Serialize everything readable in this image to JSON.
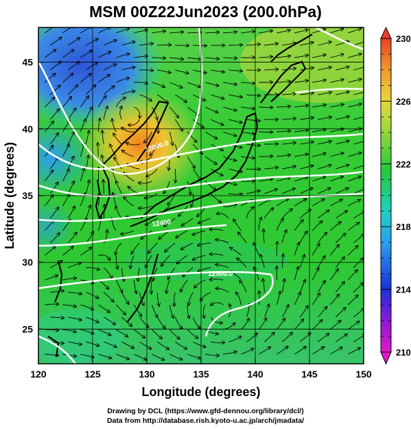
{
  "title": "MSM 00Z22Jun2023 (200.0hPa)",
  "chart_data": {
    "type": "heatmap",
    "xlabel": "Longitude (degrees)",
    "ylabel": "Latitude  (degrees)",
    "xlim": [
      120,
      150
    ],
    "ylim": [
      22.4,
      47.6
    ],
    "xticks": [
      "120",
      "125",
      "130",
      "135",
      "140",
      "145",
      "150"
    ],
    "yticks": [
      "25",
      "30",
      "35",
      "40",
      "45"
    ],
    "xtick_values": [
      120,
      125,
      130,
      135,
      140,
      145,
      150
    ],
    "ytick_values": [
      25,
      30,
      35,
      40,
      45
    ],
    "colorbar": {
      "min": 210,
      "max": 230,
      "ticks": [
        "210",
        "214",
        "218",
        "222",
        "226",
        "230"
      ],
      "tick_values": [
        210,
        214,
        218,
        222,
        226,
        230
      ]
    },
    "contour_labels": [
      "12000.0",
      "12400",
      "12500.0"
    ],
    "grid": true,
    "overlays": [
      "streamlines",
      "geopotential height contours",
      "coastlines"
    ]
  },
  "credits": {
    "line1": "Drawing by DCL (https://www.gfd-dennou.org/library/dcl/)",
    "line2": "Data from http://database.rish.kyoto-u.ac.jp/arch/jmadata/"
  },
  "colors": {
    "cold": "#2f5fd8",
    "cool": "#23b7e5",
    "mid": "#2ec92e",
    "warm": "#e6d83a",
    "hot": "#f07a1e",
    "colorbar_top": "#e8402a",
    "colorbar_bottom": "#e018c8"
  }
}
